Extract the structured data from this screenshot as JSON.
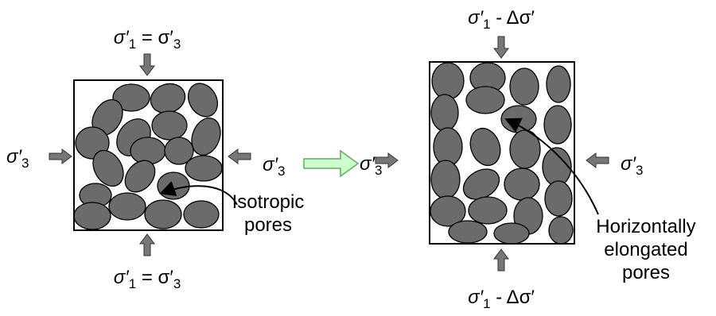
{
  "left": {
    "top_stress": [
      "σ′",
      "1",
      " = σ′",
      "3"
    ],
    "bottom_stress": [
      "σ′",
      "1",
      " = σ′",
      "3"
    ],
    "left_stress": [
      "σ′",
      "3"
    ],
    "right_stress": [
      "σ′",
      "3"
    ],
    "annotation": [
      "Isotropic",
      "pores"
    ]
  },
  "right": {
    "top_stress": [
      "σ′",
      "1",
      " - Δσ′"
    ],
    "bottom_stress": [
      "σ′",
      "1",
      " - Δσ′"
    ],
    "left_stress": [
      "σ′",
      "3"
    ],
    "right_stress": [
      "σ′",
      "3"
    ],
    "annotation": [
      "Horizontally",
      "elongated",
      "pores"
    ]
  }
}
